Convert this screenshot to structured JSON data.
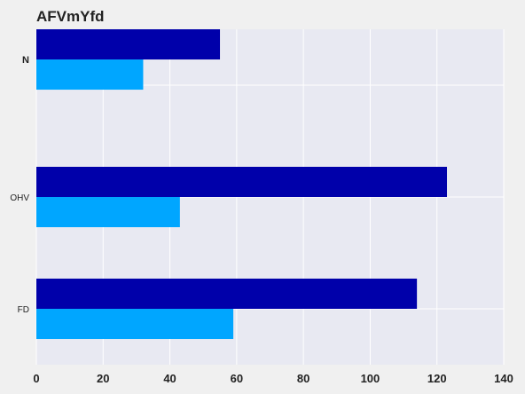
{
  "chart_data": {
    "type": "bar",
    "orientation": "horizontal",
    "title": "AFVmYfd",
    "xlabel": "",
    "ylabel": "",
    "categories": [
      "N",
      "OHV",
      "FD"
    ],
    "series": [
      {
        "values": [
          55,
          123,
          114
        ],
        "color": "#0000aa"
      },
      {
        "values": [
          32,
          43,
          59
        ],
        "color": "#00a6ff"
      }
    ],
    "xlim": [
      0,
      140
    ],
    "xticks": [
      0,
      20,
      40,
      60,
      80,
      100,
      120,
      140
    ],
    "grid": true,
    "legend": "none"
  },
  "colors": {
    "figure_bg": "#f0f0f0",
    "plot_bg": "#e8e9f2",
    "grid": "#ffffff",
    "text": "#222222"
  }
}
